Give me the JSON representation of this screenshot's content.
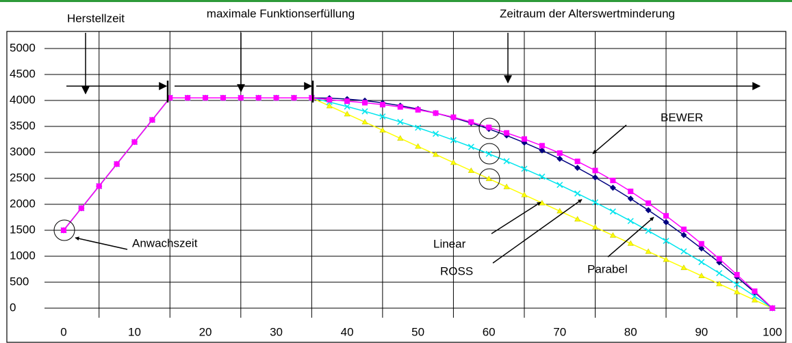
{
  "chart_data": {
    "type": "line",
    "x": [
      0,
      2.5,
      5,
      7.5,
      10,
      12.5,
      15,
      17.5,
      20,
      22.5,
      25,
      27.5,
      30,
      32.5,
      35,
      37.5,
      40,
      42.5,
      45,
      47.5,
      50,
      52.5,
      55,
      57.5,
      60,
      62.5,
      65,
      67.5,
      70,
      72.5,
      75,
      77.5,
      80,
      82.5,
      85,
      87.5,
      90,
      92.5,
      95,
      97.5,
      100
    ],
    "series": [
      {
        "name": "Linear",
        "color": "#ffff00",
        "marker": "triangle",
        "values": [
          1500,
          1925,
          2350,
          2775,
          3200,
          3625,
          4050,
          4050,
          4050,
          4050,
          4050,
          4050,
          4050,
          4050,
          4050,
          3894,
          3738,
          3583,
          3427,
          3271,
          3115,
          2960,
          2804,
          2648,
          2492,
          2337,
          2181,
          2025,
          1869,
          1713,
          1558,
          1402,
          1246,
          1090,
          935,
          779,
          623,
          467,
          312,
          156,
          0
        ]
      },
      {
        "name": "ROSS",
        "color": "#00e5ee",
        "marker": "cross",
        "values": [
          1500,
          1925,
          2350,
          2775,
          3200,
          3625,
          4050,
          4050,
          4050,
          4050,
          4050,
          4050,
          4050,
          4050,
          4050,
          3969,
          3882,
          3790,
          3691,
          3586,
          3475,
          3358,
          3236,
          3107,
          2972,
          2831,
          2684,
          2532,
          2373,
          2208,
          2037,
          1861,
          1678,
          1489,
          1295,
          1094,
          887,
          674,
          456,
          231,
          0
        ]
      },
      {
        "name": "Parabel",
        "color": "#000080",
        "marker": "diamond",
        "values": [
          1500,
          1925,
          2350,
          2775,
          3200,
          3625,
          4050,
          4050,
          4050,
          4050,
          4050,
          4050,
          4050,
          4050,
          4050,
          4044,
          4026,
          3996,
          3954,
          3900,
          3834,
          3756,
          3667,
          3565,
          3451,
          3325,
          3187,
          3038,
          2876,
          2702,
          2516,
          2319,
          2109,
          1887,
          1654,
          1408,
          1150,
          881,
          599,
          306,
          0
        ]
      },
      {
        "name": "BEWER",
        "color": "#ff00ff",
        "marker": "square",
        "values": [
          1500,
          1925,
          2350,
          2775,
          3200,
          3625,
          4050,
          4050,
          4050,
          4050,
          4050,
          4050,
          4050,
          4050,
          4050,
          4014,
          3986,
          3956,
          3919,
          3875,
          3819,
          3756,
          3677,
          3585,
          3481,
          3375,
          3257,
          3128,
          2986,
          2827,
          2651,
          2459,
          2249,
          2022,
          1779,
          1518,
          1240,
          951,
          644,
          326,
          0
        ]
      }
    ],
    "annotations": [
      "Herstellzeit",
      "maximale Funktionserfüllung",
      "Zeitraum der Alterswertminderung",
      "Anwachszeit"
    ],
    "xlim": [
      -2.7,
      101.9
    ],
    "xticks": [
      0,
      10,
      20,
      30,
      40,
      50,
      60,
      70,
      80,
      90,
      100
    ],
    "ylim": [
      0,
      5000
    ],
    "yticks": [
      0,
      500,
      1000,
      1500,
      2000,
      2500,
      3000,
      3500,
      4000,
      4500,
      5000
    ],
    "grid": true
  }
}
